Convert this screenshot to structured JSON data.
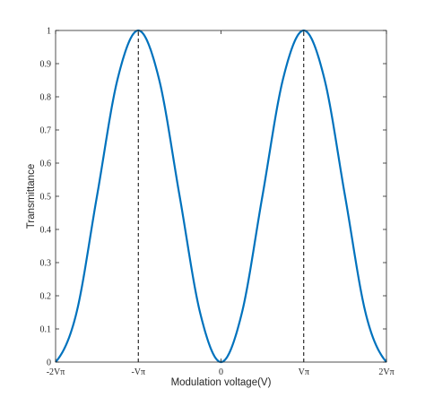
{
  "chart_data": {
    "type": "line",
    "title": "",
    "xlabel": "Modulation voltage(V)",
    "ylabel": "Transmittance",
    "xlim": [
      -2,
      2
    ],
    "ylim": [
      0,
      1
    ],
    "x_unit": "Vπ",
    "x_ticks": [
      -2,
      -1,
      0,
      1,
      2
    ],
    "x_tick_labels": [
      "-2Vπ",
      "-Vπ",
      "0",
      "Vπ",
      "2Vπ"
    ],
    "y_ticks": [
      0,
      0.1,
      0.2,
      0.3,
      0.4,
      0.5,
      0.6,
      0.7,
      0.8,
      0.9,
      1
    ],
    "y_tick_labels": [
      "0",
      "0.1",
      "0.2",
      "0.3",
      "0.4",
      "0.5",
      "0.6",
      "0.7",
      "0.8",
      "0.9",
      "1"
    ],
    "grid": false,
    "box": true,
    "series": [
      {
        "x": [
          -2,
          -1.75,
          -1.5,
          -1.25,
          -1,
          -0.75,
          -0.5,
          -0.25,
          0,
          0.25,
          0.5,
          0.75,
          1,
          1.25,
          1.5,
          1.75,
          2
        ],
        "y": [
          0,
          0.146,
          0.5,
          0.854,
          1,
          0.854,
          0.5,
          0.146,
          0,
          0.146,
          0.5,
          0.854,
          1,
          0.854,
          0.5,
          0.146,
          0
        ],
        "color": "#0072BD",
        "line_width": "thick"
      }
    ],
    "reference_lines": [
      {
        "x": -1,
        "y_from": 0,
        "y_to": 1,
        "style": "dashed",
        "color": "#000000"
      },
      {
        "x": 1,
        "y_from": 0,
        "y_to": 1,
        "style": "dashed",
        "color": "#000000"
      }
    ]
  }
}
